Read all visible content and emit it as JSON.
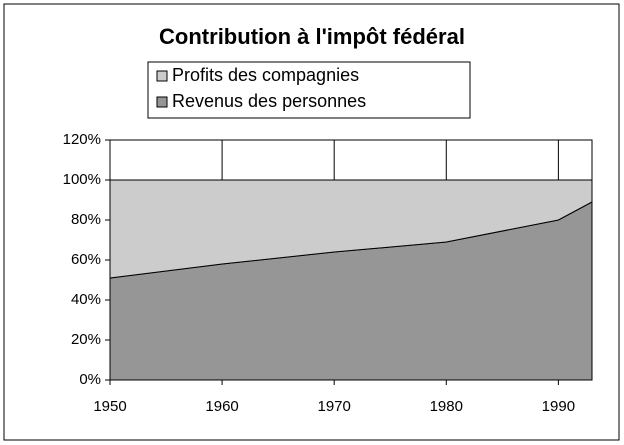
{
  "chart_data": {
    "type": "stacked_area",
    "title": "Contribution à l'impôt fédéral",
    "x": [
      1950,
      1960,
      1970,
      1980,
      1990,
      1993
    ],
    "series": [
      {
        "name": "Revenus des personnes",
        "color": "#969696",
        "values": [
          51,
          58,
          64,
          69,
          80,
          89
        ]
      },
      {
        "name": "Profits des compagnies",
        "color": "#cccccc",
        "values": [
          49,
          42,
          36,
          31,
          20,
          11
        ]
      }
    ],
    "xlim": [
      1950,
      1993
    ],
    "xticks": [
      1950,
      1960,
      1970,
      1980,
      1990
    ],
    "ylim": [
      0,
      120
    ],
    "yticks": [
      {
        "value": 0,
        "label": "0%"
      },
      {
        "value": 20,
        "label": "20%"
      },
      {
        "value": 40,
        "label": "40%"
      },
      {
        "value": 60,
        "label": "60%"
      },
      {
        "value": 80,
        "label": "80%"
      },
      {
        "value": 100,
        "label": "100%"
      },
      {
        "value": 120,
        "label": "120%"
      }
    ],
    "grid": true
  }
}
